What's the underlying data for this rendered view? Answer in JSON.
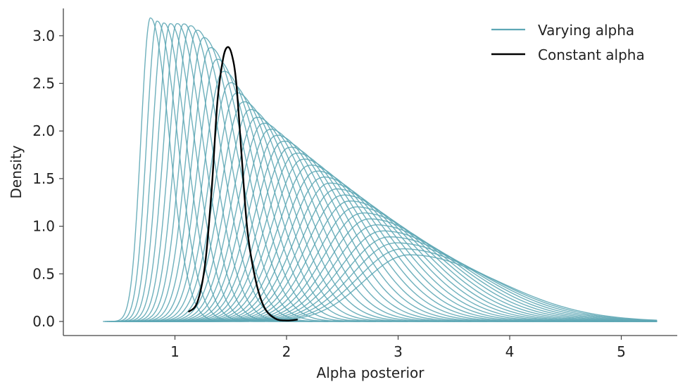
{
  "chart_data": {
    "type": "line",
    "title": "",
    "xlabel": "Alpha posterior",
    "ylabel": "Density",
    "xlim": [
      0.0,
      5.6
    ],
    "ylim": [
      -0.15,
      3.3
    ],
    "xticks": [
      1,
      2,
      3,
      4,
      5
    ],
    "yticks": [
      0.0,
      0.5,
      1.0,
      1.5,
      2.0,
      2.5,
      3.0
    ],
    "xtick_labels": [
      "1",
      "2",
      "3",
      "4",
      "5"
    ],
    "ytick_labels": [
      "0.0",
      "0.5",
      "1.0",
      "1.5",
      "2.0",
      "2.5",
      "3.0"
    ],
    "grid": false,
    "legend_position": "top-right",
    "colors": {
      "varying": "#5ea7b5",
      "constant": "#000000",
      "axis": "#444444"
    },
    "series": [
      {
        "name": "Varying alpha",
        "style": "family of 40 density curves",
        "peak_density_range": [
          0.7,
          3.15
        ],
        "peak_location_range": [
          0.78,
          3.1
        ],
        "example_curves": [
          {
            "x": [
              0.32,
              0.55,
              0.68,
              0.78,
              0.92,
              1.1,
              1.3,
              1.5
            ],
            "y": [
              0.0,
              0.1,
              1.5,
              2.9,
              2.6,
              1.4,
              0.3,
              0.0
            ]
          },
          {
            "x": [
              1.0,
              1.4,
              1.8,
              2.1,
              2.3,
              2.6,
              3.0,
              3.4
            ],
            "y": [
              0.0,
              0.15,
              0.9,
              1.58,
              1.55,
              1.0,
              0.35,
              0.05
            ]
          },
          {
            "x": [
              1.0,
              1.6,
              2.2,
              2.8,
              3.3,
              3.6,
              4.0,
              4.6,
              5.3
            ],
            "y": [
              0.0,
              0.05,
              0.3,
              0.6,
              0.55,
              0.45,
              0.25,
              0.05,
              0.0
            ]
          }
        ]
      },
      {
        "name": "Constant alpha",
        "x": [
          1.12,
          1.2,
          1.27,
          1.33,
          1.38,
          1.43,
          1.47,
          1.51,
          1.55,
          1.6,
          1.65,
          1.72,
          1.8,
          1.9,
          2.0,
          2.1
        ],
        "y": [
          0.1,
          0.2,
          0.6,
          1.4,
          2.3,
          2.75,
          2.88,
          2.8,
          2.5,
          1.7,
          0.95,
          0.45,
          0.15,
          0.03,
          0.01,
          0.02
        ]
      }
    ]
  }
}
